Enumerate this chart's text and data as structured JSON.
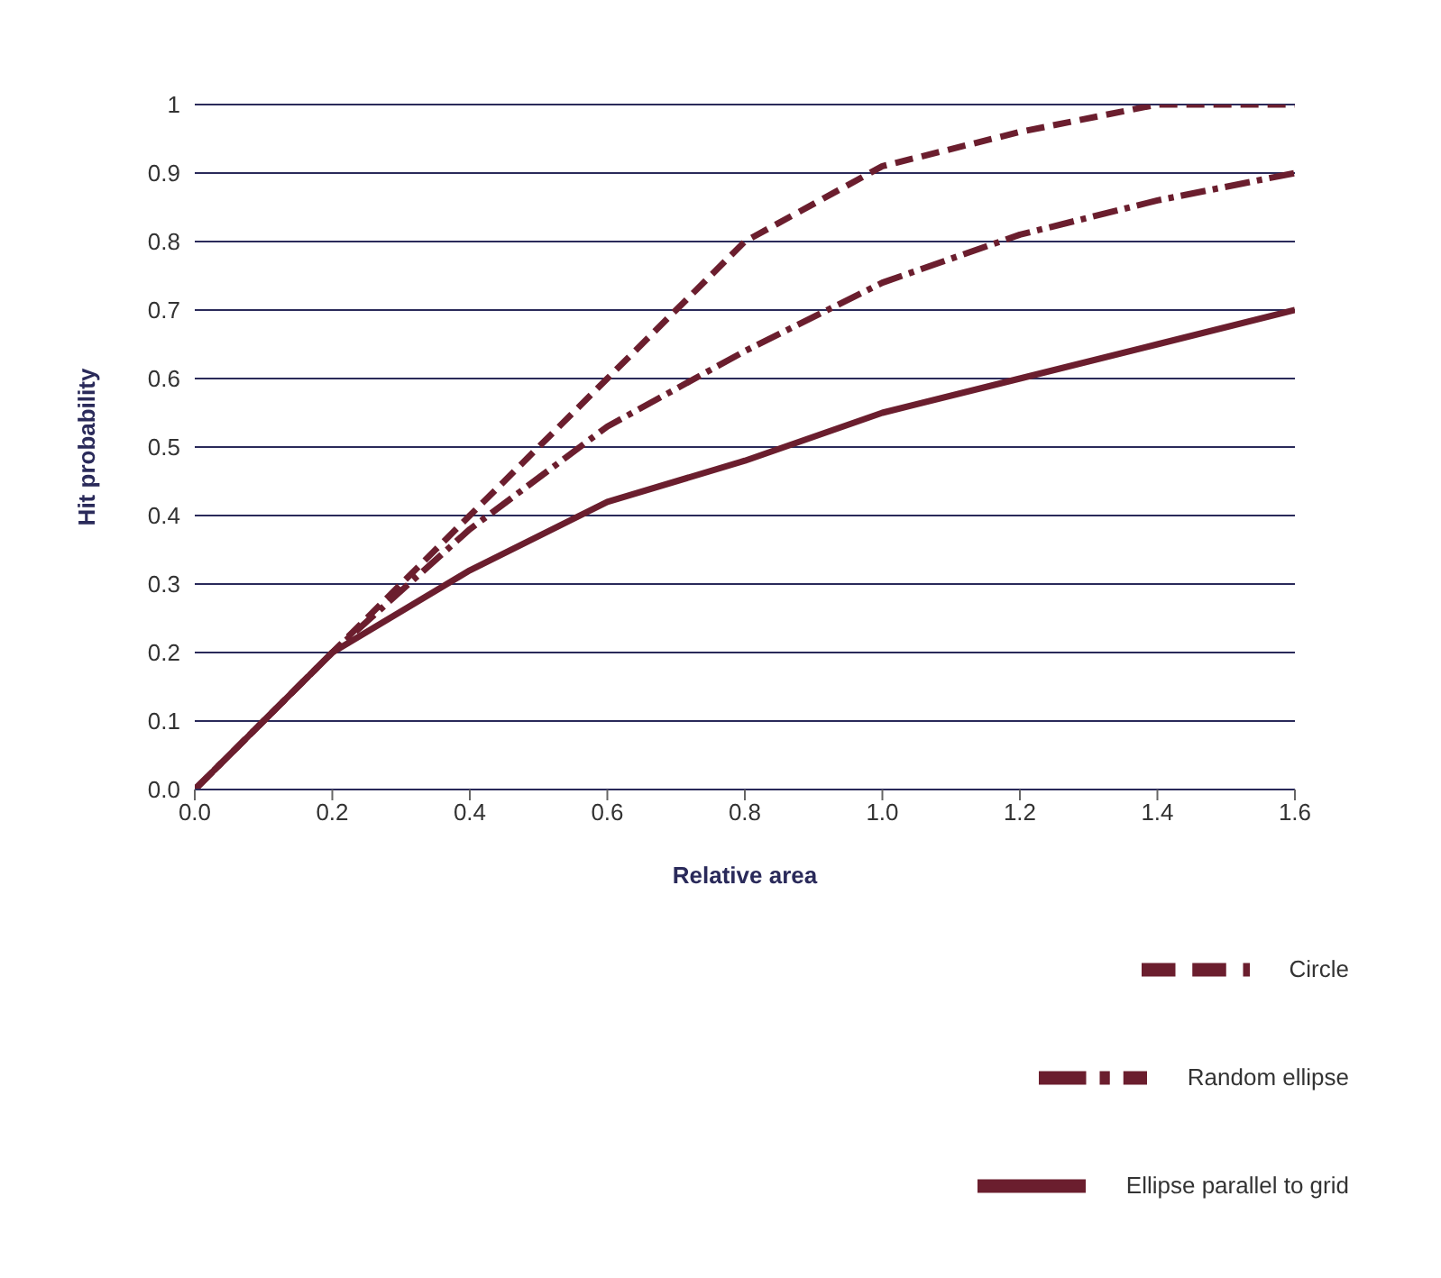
{
  "chart_data": {
    "type": "line",
    "xlabel": "Relative area",
    "ylabel": "Hit probability",
    "x": [
      0,
      0.2,
      0.4,
      0.6,
      0.8,
      1.0,
      1.2,
      1.4,
      1.6
    ],
    "series": [
      {
        "name": "Circle",
        "color": "#6b1e2e",
        "line_style": "dashed",
        "values": [
          0,
          0.2,
          0.4,
          0.6,
          0.8,
          0.91,
          0.96,
          1.0,
          1.0
        ]
      },
      {
        "name": "Random ellipse",
        "color": "#6b1e2e",
        "line_style": "dashdot",
        "values": [
          0,
          0.2,
          0.38,
          0.53,
          0.64,
          0.74,
          0.81,
          0.86,
          0.9
        ]
      },
      {
        "name": "Ellipse parallel to grid",
        "color": "#6b1e2e",
        "line_style": "solid",
        "values": [
          0,
          0.2,
          0.32,
          0.42,
          0.48,
          0.55,
          0.6,
          0.65,
          0.7
        ]
      }
    ],
    "xlim": [
      0,
      1.6
    ],
    "xticks": [
      {
        "value": 0,
        "label": "0.0"
      },
      0.2,
      0.4,
      0.6,
      0.8,
      {
        "value": 1.0,
        "label": "1.0"
      },
      1.2,
      1.4,
      1.6
    ],
    "ylim": [
      0,
      1
    ],
    "yticks": [
      {
        "value": 0,
        "label": "0.0"
      },
      0.1,
      0.2,
      0.3,
      0.4,
      0.5,
      0.6,
      0.7,
      0.8,
      0.9,
      1
    ],
    "grid": "y",
    "legend": "bottom right",
    "marker": "none"
  }
}
